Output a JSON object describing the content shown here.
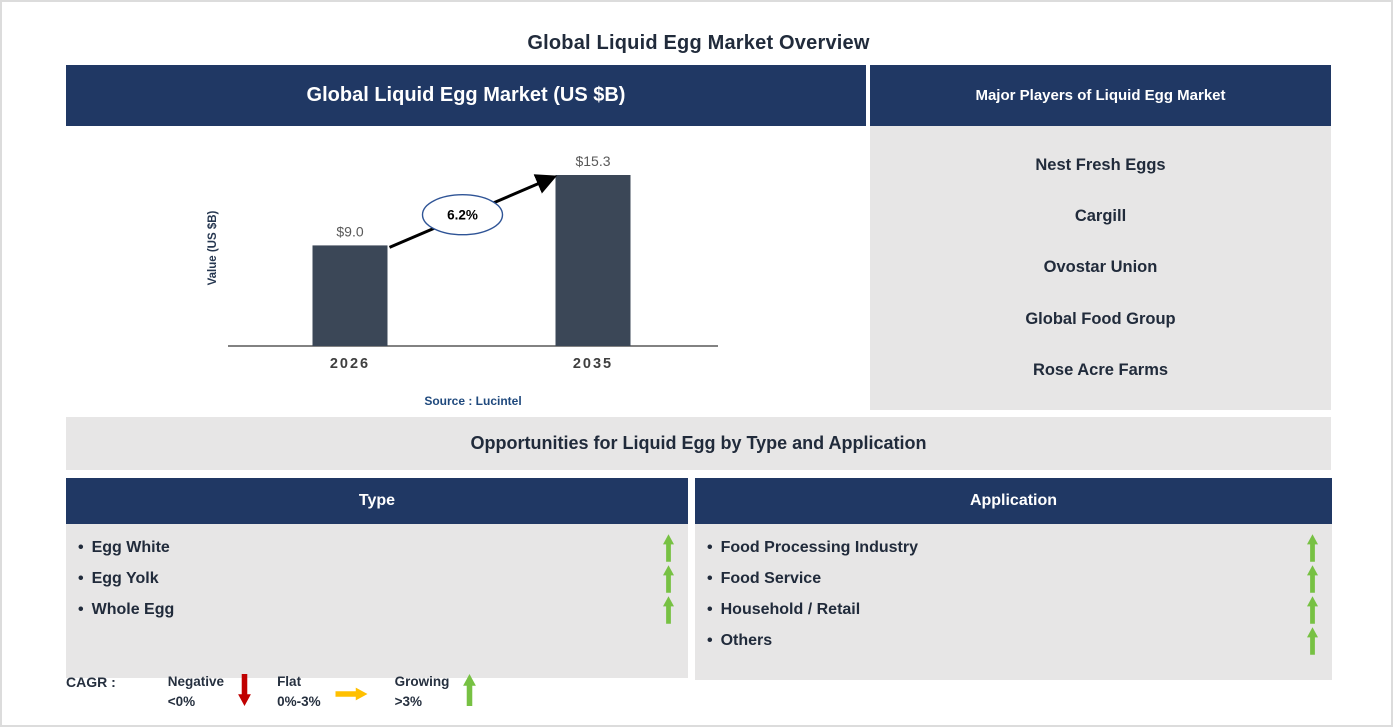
{
  "page": {
    "title": "Global Liquid Egg Market Overview"
  },
  "ui": {
    "bullet_char": "•"
  },
  "colors": {
    "header_navy": "#203864",
    "panel_gray": "#e7e6e6",
    "bar_fill": "#3b4757",
    "growing_green": "#77c143",
    "negative_red": "#c00000",
    "flat_yellow": "#ffc000",
    "source_blue": "#1f497d",
    "dark_text": "#212b3b",
    "value_label_gray": "#595959"
  },
  "market_chart": {
    "header": "Global Liquid Egg Market (US $B)",
    "source": "Source : Lucintel"
  },
  "chart_data": {
    "type": "bar",
    "title": "Global Liquid Egg Market (US $B)",
    "categories": [
      "2026",
      "2035"
    ],
    "values": [
      9.0,
      15.3
    ],
    "value_labels": [
      "$9.0",
      "$15.3"
    ],
    "xlabel": "",
    "ylabel": "Value (US $B)",
    "ylim": [
      0,
      17
    ],
    "grid": false,
    "legend_position": "none",
    "bar_color": "#3b4757",
    "annotations": [
      {
        "label": "6.2%",
        "meaning": "CAGR from 2026 to 2035",
        "shape": "oval-on-arrow"
      }
    ]
  },
  "major_players": {
    "header": "Major Players of Liquid Egg Market",
    "players": [
      "Nest Fresh Eggs",
      "Cargill",
      "Ovostar Union",
      "Global Food Group",
      "Rose Acre Farms"
    ]
  },
  "opportunities": {
    "title": "Opportunities for Liquid Egg by Type and Application",
    "type_panel": {
      "header": "Type",
      "items": [
        {
          "label": "Egg White",
          "trend": "growing"
        },
        {
          "label": "Egg Yolk",
          "trend": "growing"
        },
        {
          "label": "Whole Egg",
          "trend": "growing"
        }
      ]
    },
    "application_panel": {
      "header": "Application",
      "items": [
        {
          "label": "Food Processing Industry",
          "trend": "growing"
        },
        {
          "label": "Food Service",
          "trend": "growing"
        },
        {
          "label": "Household / Retail",
          "trend": "growing"
        },
        {
          "label": "Others",
          "trend": "growing"
        }
      ]
    }
  },
  "legend": {
    "prefix": "CAGR :",
    "items": [
      {
        "label": "Negative",
        "range": "<0%",
        "direction": "down",
        "color": "#c00000"
      },
      {
        "label": "Flat",
        "range": "0%-3%",
        "direction": "right",
        "color": "#ffc000"
      },
      {
        "label": "Growing",
        "range": ">3%",
        "direction": "up",
        "color": "#77c143"
      }
    ]
  }
}
